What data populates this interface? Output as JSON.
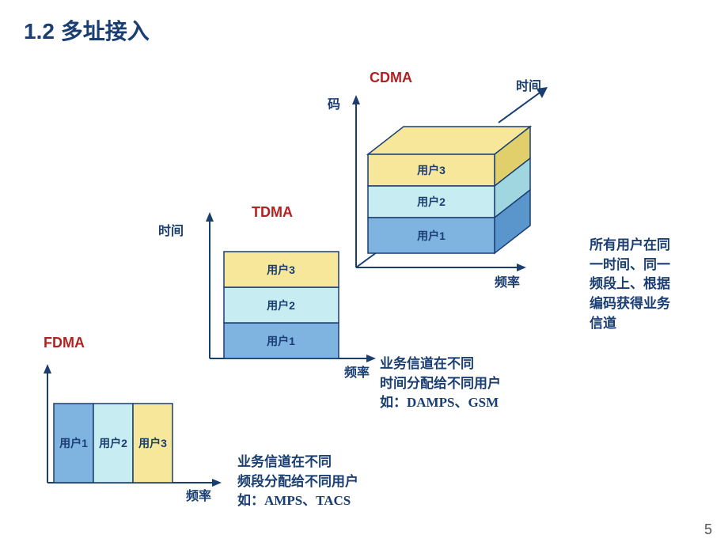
{
  "title": {
    "text": "1.2 多址接入",
    "color": "#1a3e72"
  },
  "page_number": "5",
  "colors": {
    "user1": "#7fb3e0",
    "user2": "#c7ecf2",
    "user3": "#f6e79a",
    "user1_dark": "#5a96cc",
    "user2_dark": "#a0d6e0",
    "user3_dark": "#e0cf6b",
    "axis": "#1a3e72",
    "title_red": "#b22222"
  },
  "fdma": {
    "title": "FDMA",
    "x_label": "频率",
    "users": [
      "用户1",
      "用户2",
      "用户3"
    ],
    "desc": "业务信道在不同\n频段分配给不同用户\n如：AMPS、TACS"
  },
  "tdma": {
    "title": "TDMA",
    "y_label": "时间",
    "x_label": "频率",
    "users": [
      "用户1",
      "用户2",
      "用户3"
    ],
    "desc": "业务信道在不同\n时间分配给不同用户\n如：DAMPS、GSM"
  },
  "cdma": {
    "title": "CDMA",
    "y_label": "码",
    "x_label": "频率",
    "z_label": "时间",
    "users": [
      "用户1",
      "用户2",
      "用户3"
    ],
    "desc": "所有用户在同\n一时间、同一\n频段上、根据\n编码获得业务\n信道"
  }
}
